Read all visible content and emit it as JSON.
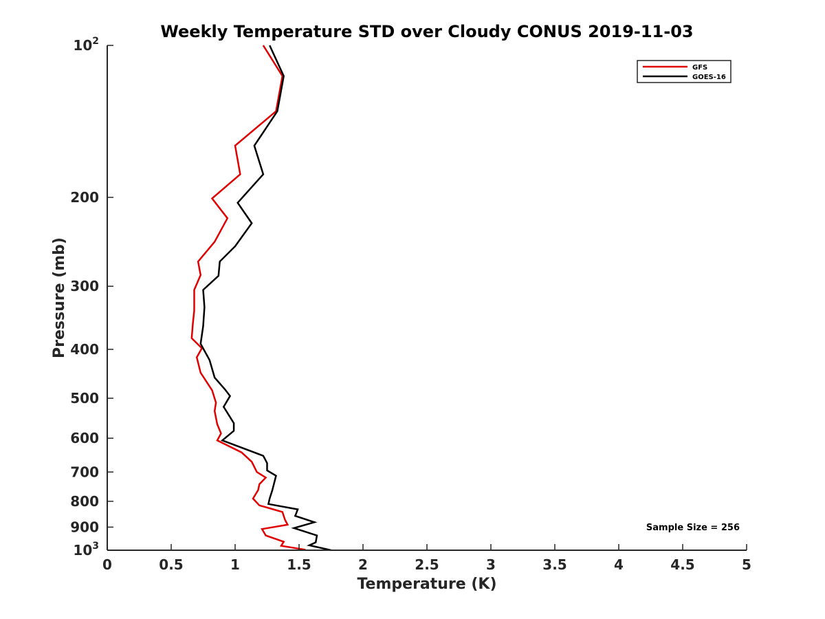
{
  "chart_data": {
    "type": "line",
    "title": "Weekly Temperature STD over Cloudy CONUS 2019-11-03",
    "xlabel": "Temperature (K)",
    "ylabel": "Pressure (mb)",
    "xlim": [
      0,
      5
    ],
    "ylim": [
      100,
      1000
    ],
    "yscale": "log",
    "yreversed": true,
    "grid": false,
    "legend_position": "top-right",
    "x_ticks": [
      {
        "value": 0,
        "label": "0"
      },
      {
        "value": 0.5,
        "label": "0.5"
      },
      {
        "value": 1,
        "label": "1"
      },
      {
        "value": 1.5,
        "label": "1.5"
      },
      {
        "value": 2,
        "label": "2"
      },
      {
        "value": 2.5,
        "label": "2.5"
      },
      {
        "value": 3,
        "label": "3"
      },
      {
        "value": 3.5,
        "label": "3.5"
      },
      {
        "value": 4,
        "label": "4"
      },
      {
        "value": 4.5,
        "label": "4.5"
      },
      {
        "value": 5,
        "label": "5"
      }
    ],
    "y_ticks": [
      {
        "value": 100,
        "label": "10",
        "sup": "2"
      },
      {
        "value": 200,
        "label": "200",
        "sup": ""
      },
      {
        "value": 300,
        "label": "300",
        "sup": ""
      },
      {
        "value": 400,
        "label": "400",
        "sup": ""
      },
      {
        "value": 500,
        "label": "500",
        "sup": ""
      },
      {
        "value": 600,
        "label": "600",
        "sup": ""
      },
      {
        "value": 700,
        "label": "700",
        "sup": ""
      },
      {
        "value": 800,
        "label": "800",
        "sup": ""
      },
      {
        "value": 900,
        "label": "900",
        "sup": ""
      },
      {
        "value": 1000,
        "label": "10",
        "sup": "3"
      }
    ],
    "annotation": "Sample Size = 256",
    "series": [
      {
        "name": "GFS",
        "color": "#e00000",
        "points": [
          [
            1.22,
            100
          ],
          [
            1.37,
            115
          ],
          [
            1.32,
            135
          ],
          [
            1.0,
            158
          ],
          [
            1.04,
            180
          ],
          [
            0.82,
            201
          ],
          [
            0.94,
            220
          ],
          [
            0.84,
            245
          ],
          [
            0.71,
            268
          ],
          [
            0.73,
            285
          ],
          [
            0.68,
            305
          ],
          [
            0.68,
            335
          ],
          [
            0.67,
            355
          ],
          [
            0.66,
            380
          ],
          [
            0.74,
            398
          ],
          [
            0.7,
            415
          ],
          [
            0.73,
            445
          ],
          [
            0.82,
            482
          ],
          [
            0.85,
            510
          ],
          [
            0.84,
            530
          ],
          [
            0.86,
            563
          ],
          [
            0.89,
            587
          ],
          [
            0.86,
            606
          ],
          [
            1.05,
            640
          ],
          [
            1.13,
            668
          ],
          [
            1.17,
            700
          ],
          [
            1.24,
            718
          ],
          [
            1.19,
            740
          ],
          [
            1.18,
            760
          ],
          [
            1.14,
            790
          ],
          [
            1.19,
            815
          ],
          [
            1.37,
            840
          ],
          [
            1.39,
            870
          ],
          [
            1.41,
            890
          ],
          [
            1.21,
            908
          ],
          [
            1.24,
            935
          ],
          [
            1.38,
            962
          ],
          [
            1.36,
            980
          ],
          [
            1.55,
            998
          ]
        ]
      },
      {
        "name": "GOES-16",
        "color": "#000000",
        "points": [
          [
            1.27,
            100
          ],
          [
            1.38,
            115
          ],
          [
            1.33,
            135
          ],
          [
            1.15,
            158
          ],
          [
            1.22,
            180
          ],
          [
            1.02,
            205
          ],
          [
            1.13,
            225
          ],
          [
            1.0,
            250
          ],
          [
            0.88,
            268
          ],
          [
            0.87,
            286
          ],
          [
            0.75,
            305
          ],
          [
            0.76,
            330
          ],
          [
            0.75,
            360
          ],
          [
            0.73,
            390
          ],
          [
            0.8,
            420
          ],
          [
            0.84,
            455
          ],
          [
            0.92,
            480
          ],
          [
            0.96,
            495
          ],
          [
            0.91,
            520
          ],
          [
            0.99,
            560
          ],
          [
            0.99,
            580
          ],
          [
            0.9,
            606
          ],
          [
            1.22,
            650
          ],
          [
            1.25,
            672
          ],
          [
            1.25,
            695
          ],
          [
            1.32,
            712
          ],
          [
            1.3,
            745
          ],
          [
            1.29,
            762
          ],
          [
            1.27,
            790
          ],
          [
            1.26,
            810
          ],
          [
            1.49,
            830
          ],
          [
            1.47,
            855
          ],
          [
            1.62,
            880
          ],
          [
            1.46,
            904
          ],
          [
            1.64,
            935
          ],
          [
            1.63,
            965
          ],
          [
            1.58,
            978
          ],
          [
            1.75,
            1000
          ]
        ]
      }
    ]
  }
}
